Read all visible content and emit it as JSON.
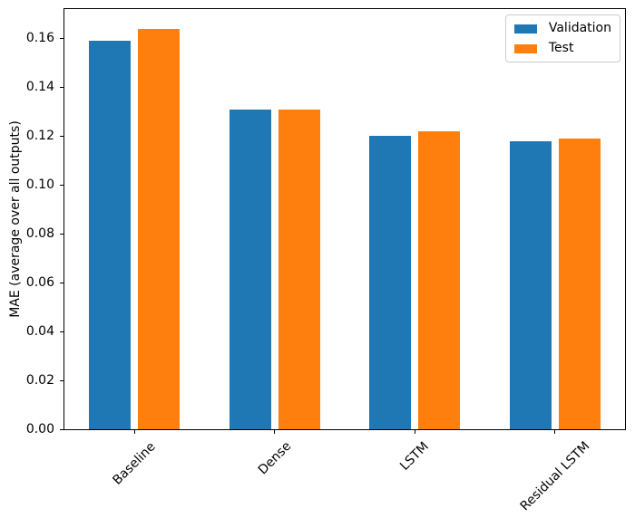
{
  "chart_data": {
    "type": "bar",
    "title": "",
    "categories": [
      "Baseline",
      "Dense",
      "LSTM",
      "Residual LSTM"
    ],
    "series": [
      {
        "name": "Validation",
        "color": "#1f77b4",
        "values": [
          0.159,
          0.131,
          0.12,
          0.118
        ]
      },
      {
        "name": "Test",
        "color": "#ff7f0e",
        "values": [
          0.164,
          0.131,
          0.122,
          0.119
        ]
      }
    ],
    "xlabel": "",
    "ylabel": "MAE (average over all outputs)",
    "ylim": [
      0,
      0.172
    ],
    "yticks": [
      "0.00",
      "0.02",
      "0.04",
      "0.06",
      "0.08",
      "0.10",
      "0.12",
      "0.14",
      "0.16"
    ],
    "x_tick_rotation": 45,
    "grid": false,
    "legend_position": "upper right",
    "colors": {
      "validation": "#1f77b4",
      "test": "#ff7f0e",
      "spine": "#000000",
      "legend_border": "#cccccc",
      "background": "#ffffff"
    }
  }
}
